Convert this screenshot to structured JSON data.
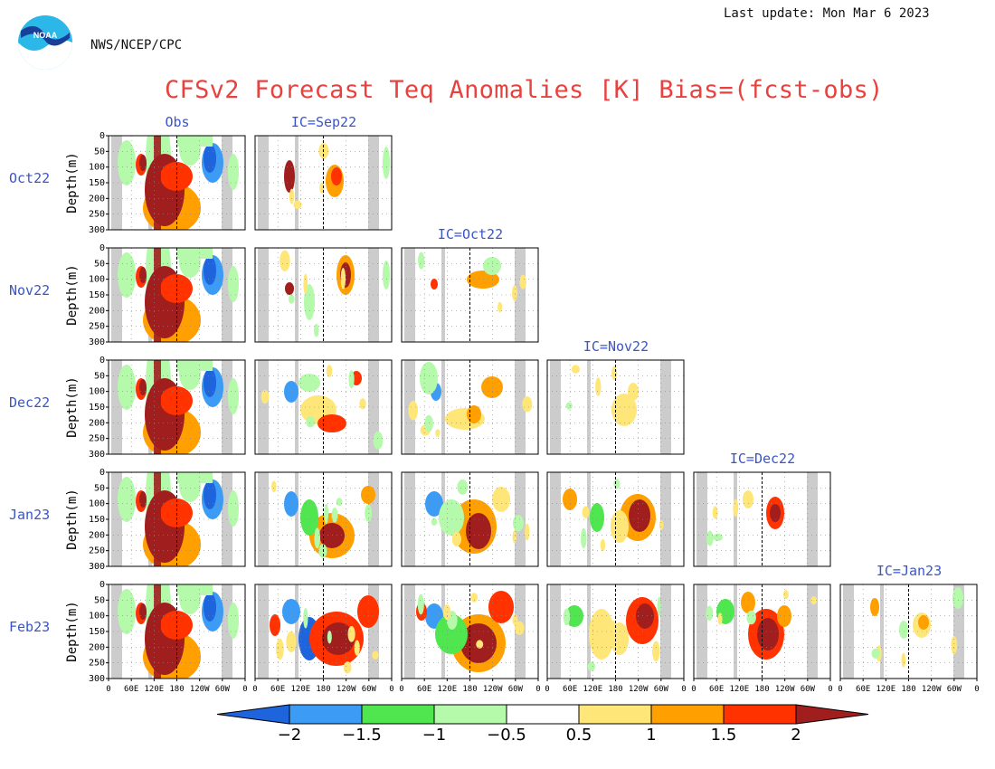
{
  "header": {
    "last_update": "Last update: Mon Mar 6 2023",
    "agency": "NWS/NCEP/CPC",
    "logo_text": "NOAA"
  },
  "title": "CFSv2 Forecast Teq Anomalies [K] Bias=(fcst-obs)",
  "chart_data": {
    "type": "heatmap",
    "title": "CFSv2 Forecast Teq Anomalies [K] Bias=(fcst-obs)",
    "ylabel": "Depth(m)",
    "y_ticks": [
      "0",
      "50",
      "100",
      "150",
      "200",
      "250",
      "300"
    ],
    "ylim": [
      0,
      300
    ],
    "x_ticks": [
      "0",
      "60E",
      "120E",
      "180",
      "120W",
      "60W",
      "0"
    ],
    "column_titles": [
      "Obs",
      "IC=Sep22",
      "IC=Oct22",
      "IC=Nov22",
      "IC=Dec22",
      "IC=Jan23"
    ],
    "row_labels": [
      "Oct22",
      "Nov22",
      "Dec22",
      "Jan23",
      "Feb23"
    ],
    "colorbar": {
      "levels": [
        "−2",
        "−1.5",
        "−1",
        "−0.5",
        "0.5",
        "1",
        "1.5",
        "2"
      ],
      "colors": [
        "#1e64dc",
        "#3c9bf5",
        "#50e650",
        "#b4faaa",
        "#ffffff",
        "#ffe678",
        "#ffa000",
        "#ff3200",
        "#a01e1e"
      ]
    }
  }
}
